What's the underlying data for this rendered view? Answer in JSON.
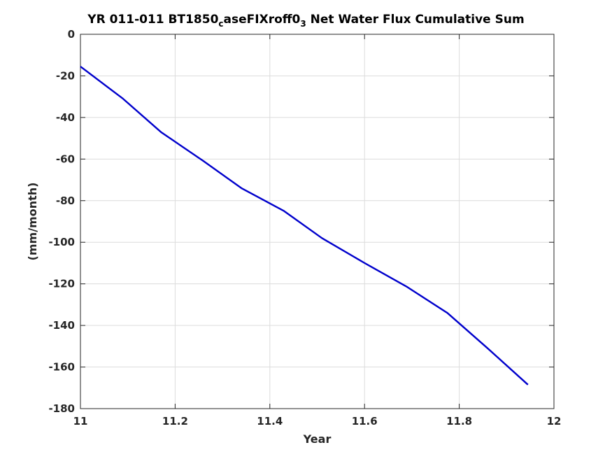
{
  "chart_data": {
    "type": "line",
    "title": {
      "part1": "YR 011-011 BT1850",
      "sub1": "c",
      "part2": "aseFIXroff0",
      "sub2": "3",
      "part3": " Net Water Flux Cumulative Sum"
    },
    "xlabel": "Year",
    "ylabel": "(mm/month)",
    "xlim": [
      11,
      12
    ],
    "ylim": [
      -180,
      0
    ],
    "xticks": [
      11,
      11.2,
      11.4,
      11.6,
      11.8,
      12
    ],
    "xtick_labels": [
      "11",
      "11.2",
      "11.4",
      "11.6",
      "11.8",
      "12"
    ],
    "yticks": [
      0,
      -20,
      -40,
      -60,
      -80,
      -100,
      -120,
      -140,
      -160,
      -180
    ],
    "ytick_labels": [
      "0",
      "-20",
      "-40",
      "-60",
      "-80",
      "-100",
      "-120",
      "-140",
      "-160",
      "-180"
    ],
    "grid": true,
    "line_color": "#0000cc",
    "series": [
      {
        "x": [
          11.0,
          11.09,
          11.17,
          11.26,
          11.34,
          11.43,
          11.51,
          11.6,
          11.69,
          11.775,
          11.86,
          11.945
        ],
        "y": [
          -15.5,
          -31,
          -47,
          -61,
          -74,
          -85,
          -98,
          -110,
          -121.5,
          -134,
          -151,
          -168.5
        ]
      }
    ]
  }
}
